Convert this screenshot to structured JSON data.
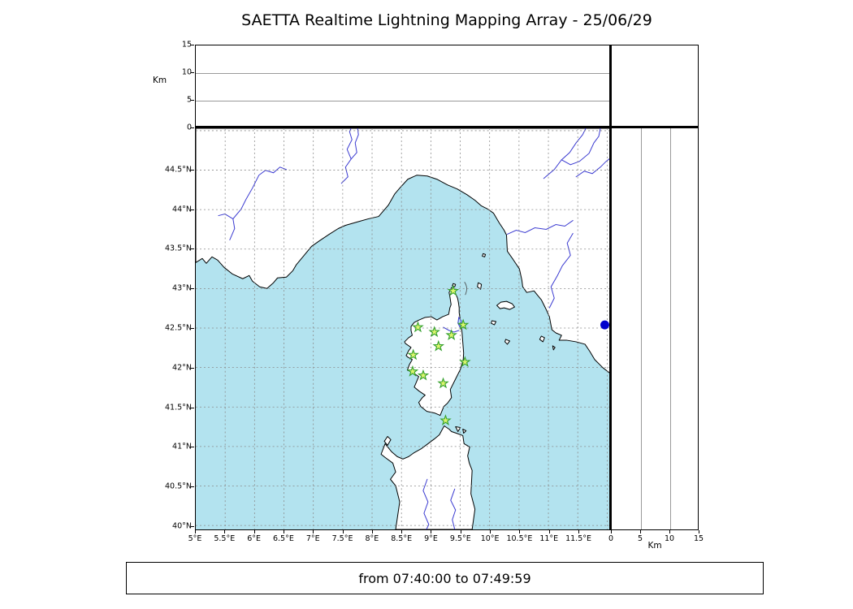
{
  "title": "SAETTA Realtime Lightning Mapping Array - 25/06/29",
  "footer": {
    "text": "from 07:40:00 to 07:49:59"
  },
  "axes": {
    "altitude_left": {
      "unit_label": "Km",
      "tick_labels": [
        "0",
        "5",
        "10",
        "15"
      ],
      "tick_values": [
        0,
        5,
        10,
        15
      ],
      "gridline_values": [
        5,
        10
      ]
    },
    "altitude_bottom": {
      "unit_label": "Km",
      "tick_labels": [
        "0",
        "5",
        "10",
        "15"
      ],
      "tick_values": [
        0,
        5,
        10,
        15
      ],
      "gridline_values": [
        5,
        10
      ]
    },
    "latitude": {
      "tick_labels": [
        "40°N",
        "40.5°N",
        "41°N",
        "41.5°N",
        "42°N",
        "42.5°N",
        "43°N",
        "43.5°N",
        "44°N",
        "44.5°N"
      ],
      "tick_values": [
        40,
        40.5,
        41,
        41.5,
        42,
        42.5,
        43,
        43.5,
        44,
        44.5
      ],
      "grid_values": [
        40,
        40.5,
        41,
        41.5,
        42,
        42.5,
        43,
        43.5,
        44,
        44.5,
        45
      ]
    },
    "longitude": {
      "tick_labels": [
        "5°E",
        "5.5°E",
        "6°E",
        "6.5°E",
        "7°E",
        "7.5°E",
        "8°E",
        "8.5°E",
        "9°E",
        "9.5°E",
        "10°E",
        "10.5°E",
        "11°E",
        "11.5°E"
      ],
      "tick_values": [
        5,
        5.5,
        6,
        6.5,
        7,
        7.5,
        8,
        8.5,
        9,
        9.5,
        10,
        10.5,
        11,
        11.5
      ],
      "grid_values": [
        5.5,
        6,
        6.5,
        7,
        7.5,
        8,
        8.5,
        9,
        9.5,
        10,
        10.5,
        11,
        11.5,
        12
      ]
    }
  },
  "colors": {
    "sea": "#b3e3ef",
    "land": "#ffffff",
    "coast": "#000000",
    "river": "#3b3bd1",
    "grid": "#8a8a8a",
    "station_fill": "#dcf56e",
    "station_stroke": "#33a02c",
    "source_dot": "#0000cd"
  },
  "chart_data": {
    "type": "scatter",
    "title": "SAETTA Realtime Lightning Mapping Array - 25/06/29",
    "time_window": "from 07:40:00 to 07:49:59",
    "map_panel": {
      "xlim": [
        5,
        12.05
      ],
      "ylim": [
        39.95,
        45.03
      ],
      "x_unit": "°E",
      "y_unit": "°N",
      "grid": "dashed",
      "region": "Western Mediterranean: Corsica, northern Sardinia, Ligurian and Tyrrhenian coasts"
    },
    "altitude_panels": {
      "ylim_km": [
        0,
        15
      ],
      "ticks_km": [
        0,
        5,
        10,
        15
      ],
      "gridlines_km": [
        5,
        10
      ],
      "points": []
    },
    "station_marker": "green-star",
    "stations": [
      {
        "lon": 9.38,
        "lat": 42.97
      },
      {
        "lon": 8.78,
        "lat": 42.51
      },
      {
        "lon": 9.06,
        "lat": 42.45
      },
      {
        "lon": 9.35,
        "lat": 42.41
      },
      {
        "lon": 9.55,
        "lat": 42.54
      },
      {
        "lon": 9.13,
        "lat": 42.27
      },
      {
        "lon": 8.7,
        "lat": 42.16
      },
      {
        "lon": 9.58,
        "lat": 42.07
      },
      {
        "lon": 8.69,
        "lat": 41.95
      },
      {
        "lon": 8.87,
        "lat": 41.9
      },
      {
        "lon": 9.21,
        "lat": 41.8
      },
      {
        "lon": 9.25,
        "lat": 41.33
      }
    ],
    "source_point": {
      "lon": 11.96,
      "lat": 42.54,
      "marker": "filled-circle",
      "color": "#0000cd"
    }
  }
}
